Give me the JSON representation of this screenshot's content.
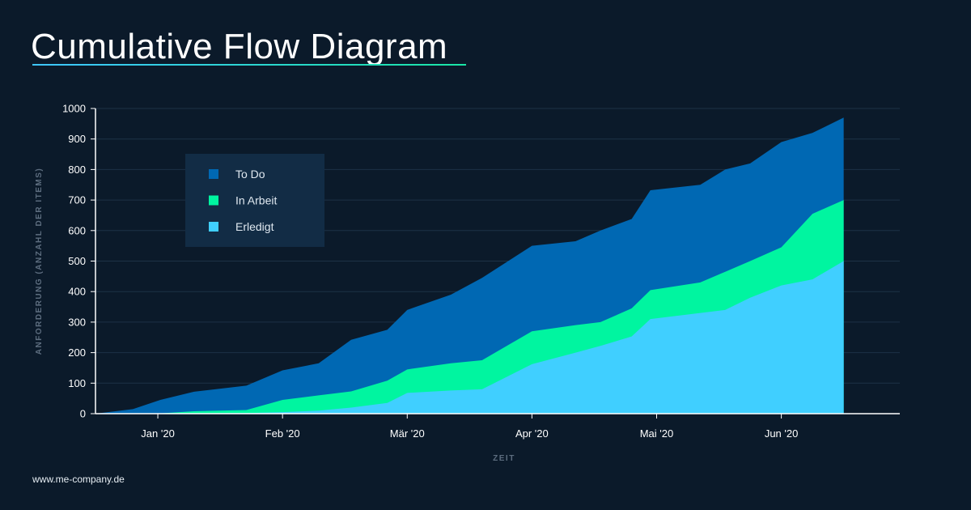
{
  "page": {
    "title": "Cumulative Flow Diagram",
    "footer": "www.me-company.de"
  },
  "colors": {
    "background": "#0b1a2a",
    "todo": "#0068b3",
    "in_arbeit": "#00f5a0",
    "erledigt": "#40cfff",
    "legend_bg": "#122c45",
    "grid": "#1d3246"
  },
  "chart_data": {
    "type": "area",
    "stacked": true,
    "xlabel": "ZEIT",
    "ylabel": "ANFORDERUNG (ANZAHL DER ITEMS)",
    "ylim": [
      0,
      1000
    ],
    "yticks": [
      0,
      100,
      200,
      300,
      400,
      500,
      600,
      700,
      800,
      900,
      1000
    ],
    "xlim": [
      0,
      6.45
    ],
    "xticks": [
      {
        "label": "Jan '20",
        "value": 0.5
      },
      {
        "label": "Feb '20",
        "value": 1.5
      },
      {
        "label": "Mär '20",
        "value": 2.5
      },
      {
        "label": "Apr '20",
        "value": 3.5
      },
      {
        "label": "Mai '20",
        "value": 4.5
      },
      {
        "label": "Jun '20",
        "value": 5.5
      }
    ],
    "grid": true,
    "legend_position": "top-left",
    "x": [
      0,
      0.3,
      0.52,
      0.79,
      1.21,
      1.5,
      1.79,
      2.05,
      2.34,
      2.5,
      2.85,
      3.1,
      3.5,
      3.85,
      4.05,
      4.3,
      4.45,
      4.85,
      5.05,
      5.25,
      5.5,
      5.75,
      6.0
    ],
    "series": [
      {
        "name": "Erledigt",
        "color": "#40cfff",
        "values": [
          0,
          0,
          0,
          1,
          2,
          5,
          10,
          20,
          35,
          68,
          76,
          80,
          162,
          200,
          222,
          253,
          310,
          330,
          340,
          380,
          420,
          440,
          500
        ]
      },
      {
        "name": "In Arbeit",
        "color": "#00f5a0",
        "values": [
          0,
          0,
          1,
          8,
          12,
          45,
          60,
          73,
          108,
          145,
          165,
          175,
          270,
          290,
          300,
          345,
          405,
          430,
          465,
          500,
          545,
          655,
          700
        ]
      },
      {
        "name": "To Do",
        "color": "#0068b3",
        "values": [
          0,
          15,
          45,
          72,
          92,
          142,
          165,
          242,
          275,
          340,
          390,
          445,
          550,
          565,
          600,
          638,
          732,
          750,
          800,
          820,
          890,
          920,
          970
        ]
      }
    ],
    "legend": [
      {
        "name": "To Do",
        "color": "#0068b3"
      },
      {
        "name": "In Arbeit",
        "color": "#00f5a0"
      },
      {
        "name": "Erledigt",
        "color": "#40cfff"
      }
    ]
  }
}
